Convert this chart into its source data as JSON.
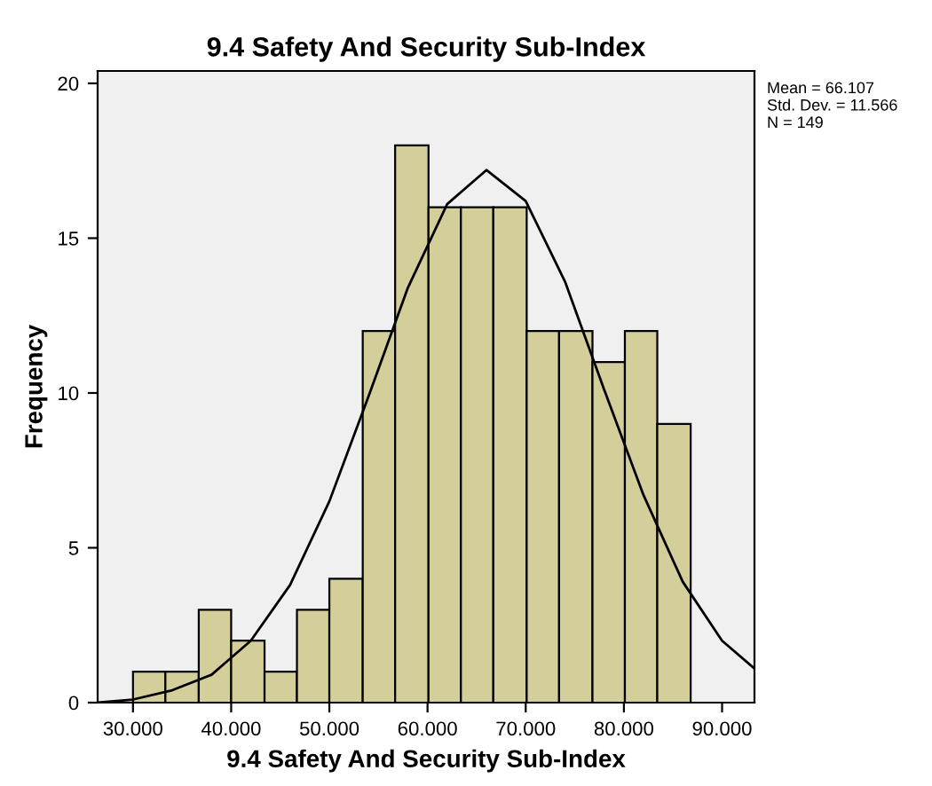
{
  "chart_data": {
    "type": "histogram",
    "title": "9.4 Safety And Security Sub-Index",
    "xlabel": "9.4 Safety And Security Sub-Index",
    "ylabel": "Frequency",
    "annotations": [
      "Mean = 66.107\nStd. Dev. = 11.566\nN = 149"
    ],
    "series": [
      {
        "color": "#d3ce9a",
        "bins": [
          30.0,
          33.3,
          36.7,
          40.0,
          43.4,
          46.7,
          50.0,
          53.4,
          56.7,
          60.1,
          63.4,
          66.7,
          70.1,
          73.4,
          76.8,
          80.1,
          83.4,
          86.8
        ],
        "values": [
          1,
          1,
          3,
          2,
          1,
          3,
          4,
          12,
          18,
          16,
          16,
          16,
          12,
          12,
          11,
          12,
          9
        ]
      },
      {
        "type": "line",
        "color": "#000000",
        "x": [
          26.4,
          30,
          34,
          38,
          42,
          46,
          50,
          54,
          58,
          62,
          66,
          70,
          74,
          78,
          82,
          86,
          90,
          93.3
        ],
        "values": [
          0.0,
          0.1,
          0.4,
          0.9,
          2.0,
          3.8,
          6.5,
          9.9,
          13.4,
          16.1,
          17.2,
          16.2,
          13.6,
          10.1,
          6.7,
          3.9,
          2.0,
          1.1
        ]
      }
    ],
    "xlim": [
      26.4,
      93.3
    ],
    "ylim": [
      0,
      20.4
    ],
    "xticks": [
      {
        "value": 30,
        "label": "30.000"
      },
      {
        "value": 40,
        "label": "40.000"
      },
      {
        "value": 50,
        "label": "50.000"
      },
      {
        "value": 60,
        "label": "60.000"
      },
      {
        "value": 70,
        "label": "70.000"
      },
      {
        "value": 80,
        "label": "80.000"
      },
      {
        "value": 90,
        "label": "90.000"
      }
    ],
    "yticks": [
      0,
      5,
      10,
      15,
      20
    ],
    "grid": false
  }
}
